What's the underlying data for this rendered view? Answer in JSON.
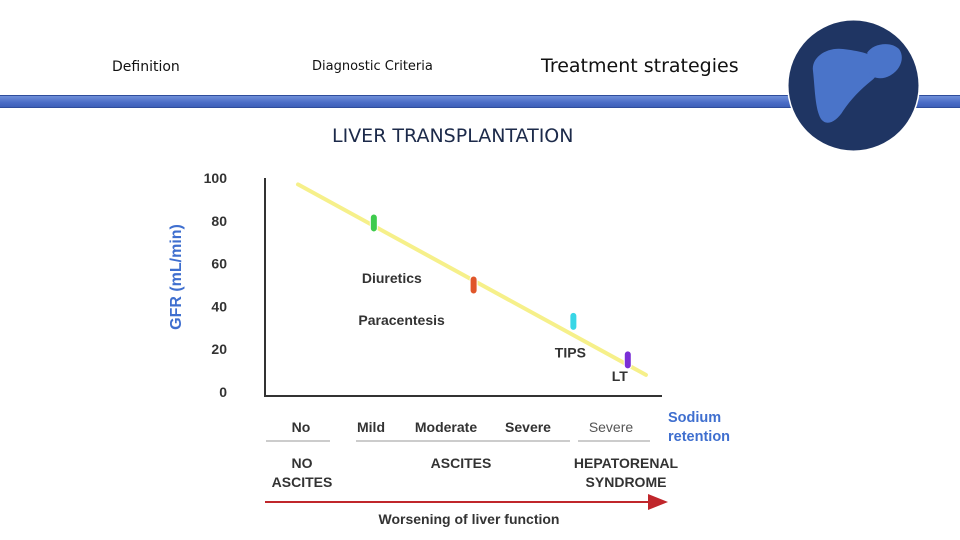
{
  "nav": {
    "definition": "Definition",
    "diagnostic_criteria": "Diagnostic Criteria",
    "treatment_strategies": "Treatment strategies"
  },
  "section_title": "LIVER TRANSPLANTATION",
  "icons": {
    "logo": "liver-icon"
  },
  "colors": {
    "header_bar": "#4a6cc6",
    "logo_circle": "#1f3563",
    "liver": "#4a74c9",
    "trend_line": "#f6f08a",
    "axis_label": "#3f6fcf",
    "arrow": "#c0262b"
  },
  "chart_data": {
    "type": "line",
    "ylabel": "GFR (mL/min)",
    "ylim": [
      0,
      100
    ],
    "yticks": [
      100,
      80,
      60,
      40,
      20,
      0
    ],
    "trend_line": {
      "start": [
        0,
        97
      ],
      "end": [
        8.4,
        8
      ]
    },
    "markers": [
      {
        "label": "Diuretics",
        "x": 2.4,
        "y": 79,
        "color": "#3ecb4d"
      },
      {
        "label": "Paracentesis",
        "x": 4.6,
        "y": 50,
        "color": "#e0562a"
      },
      {
        "label": "TIPS",
        "x": 6.8,
        "y": 33,
        "color": "#38d6e6"
      },
      {
        "label": "LT",
        "x": 8.0,
        "y": 15,
        "color": "#7a2fd6"
      }
    ],
    "sodium_levels": [
      "No",
      "Mild",
      "Moderate",
      "Severe",
      "Severe"
    ],
    "sodium_label_line1": "Sodium",
    "sodium_label_line2": "retention",
    "stages": {
      "no_ascites_line1": "NO",
      "no_ascites_line2": "ASCITES",
      "ascites": "ASCITES",
      "hrs_line1": "HEPATORENAL",
      "hrs_line2": "SYNDROME"
    },
    "arrow_label": "Worsening of liver function"
  }
}
